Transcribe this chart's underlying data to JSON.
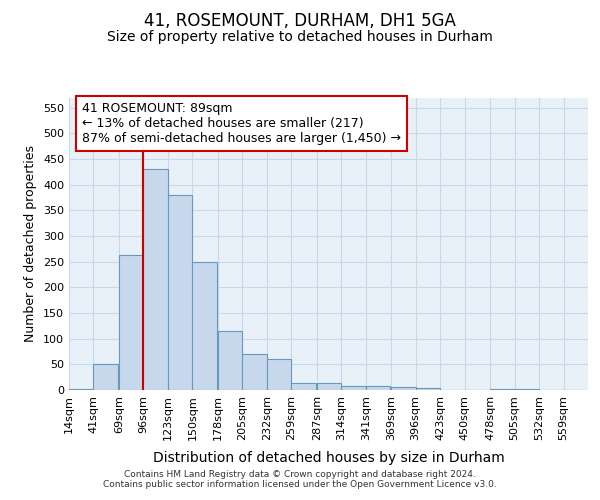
{
  "title": "41, ROSEMOUNT, DURHAM, DH1 5GA",
  "subtitle": "Size of property relative to detached houses in Durham",
  "xlabel": "Distribution of detached houses by size in Durham",
  "ylabel": "Number of detached properties",
  "footer_line1": "Contains HM Land Registry data © Crown copyright and database right 2024.",
  "footer_line2": "Contains public sector information licensed under the Open Government Licence v3.0.",
  "bar_color": "#c8d8ec",
  "bar_edge_color": "#6699bb",
  "grid_color": "#c8d8ec",
  "background_color": "#e8f0f8",
  "vline_color": "#cc0000",
  "vline_x": 96,
  "annotation_line1": "41 ROSEMOUNT: 89sqm",
  "annotation_line2": "← 13% of detached houses are smaller (217)",
  "annotation_line3": "87% of semi-detached houses are larger (1,450) →",
  "annotation_box_color": "#ffffff",
  "annotation_box_edge": "#cc0000",
  "categories": [
    "14sqm",
    "41sqm",
    "69sqm",
    "96sqm",
    "123sqm",
    "150sqm",
    "178sqm",
    "205sqm",
    "232sqm",
    "259sqm",
    "287sqm",
    "314sqm",
    "341sqm",
    "369sqm",
    "396sqm",
    "423sqm",
    "450sqm",
    "478sqm",
    "505sqm",
    "532sqm",
    "559sqm"
  ],
  "bin_starts": [
    14,
    41,
    69,
    96,
    123,
    150,
    178,
    205,
    232,
    259,
    287,
    314,
    341,
    369,
    396,
    423,
    450,
    478,
    505,
    532,
    559
  ],
  "bin_width": 27,
  "values": [
    2,
    50,
    263,
    430,
    380,
    250,
    115,
    70,
    60,
    13,
    13,
    8,
    7,
    6,
    4,
    0,
    0,
    2,
    1,
    0,
    0
  ],
  "ylim": [
    0,
    570
  ],
  "yticks": [
    0,
    50,
    100,
    150,
    200,
    250,
    300,
    350,
    400,
    450,
    500,
    550
  ],
  "title_fontsize": 12,
  "subtitle_fontsize": 10,
  "tick_fontsize": 8,
  "xlabel_fontsize": 10,
  "ylabel_fontsize": 9,
  "annotation_fontsize": 9
}
